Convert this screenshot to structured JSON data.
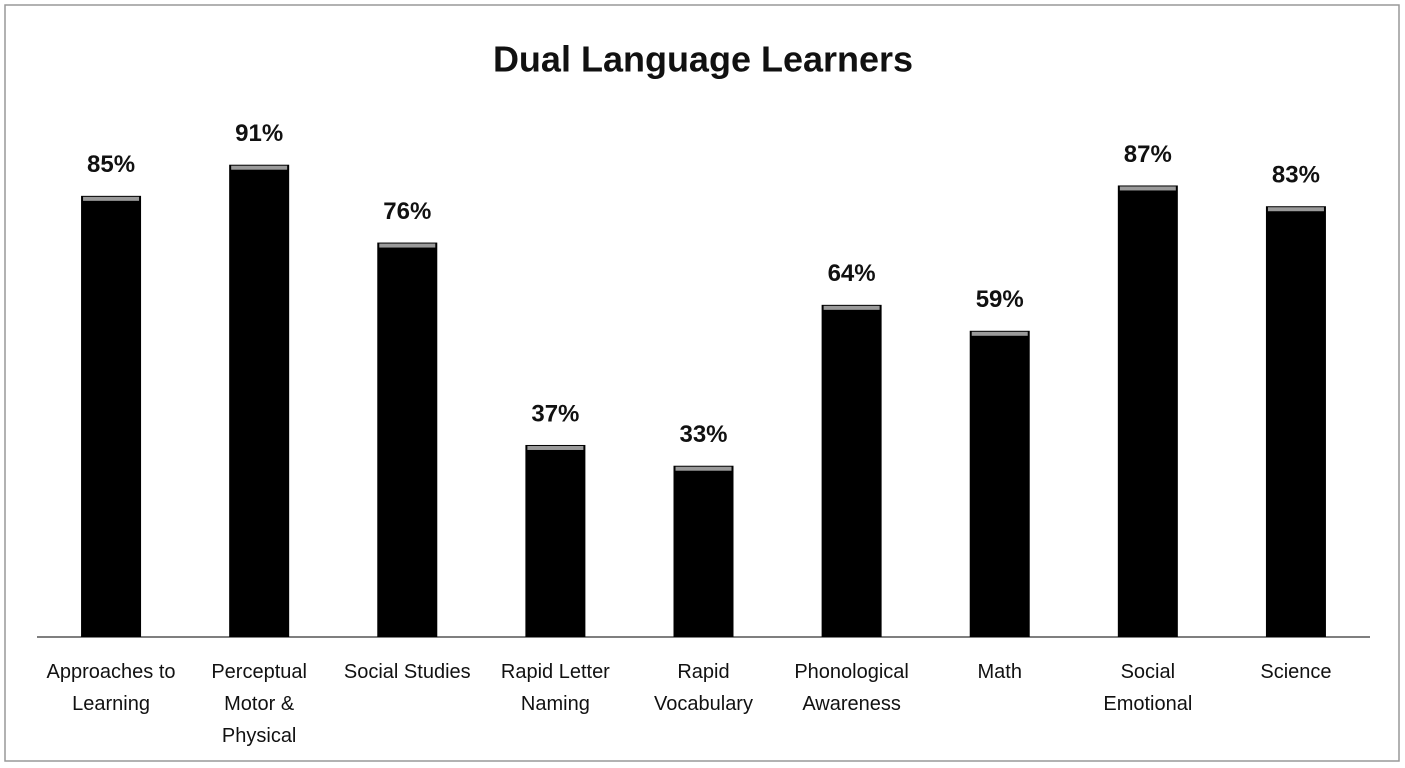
{
  "chart_data": {
    "type": "bar",
    "title": "Dual Language Learners",
    "categories": [
      "Approaches to Learning",
      "Perceptual Motor & Physical",
      "Social Studies",
      "Rapid Letter Naming",
      "Rapid Vocabulary",
      "Phonological Awareness",
      "Math",
      "Social Emotional",
      "Science"
    ],
    "values": [
      85,
      91,
      76,
      37,
      33,
      64,
      59,
      87,
      83
    ],
    "value_labels": [
      "85%",
      "91%",
      "76%",
      "37%",
      "33%",
      "64%",
      "59%",
      "87%",
      "83%"
    ],
    "color": "#000000",
    "ylim": [
      0,
      100
    ]
  }
}
